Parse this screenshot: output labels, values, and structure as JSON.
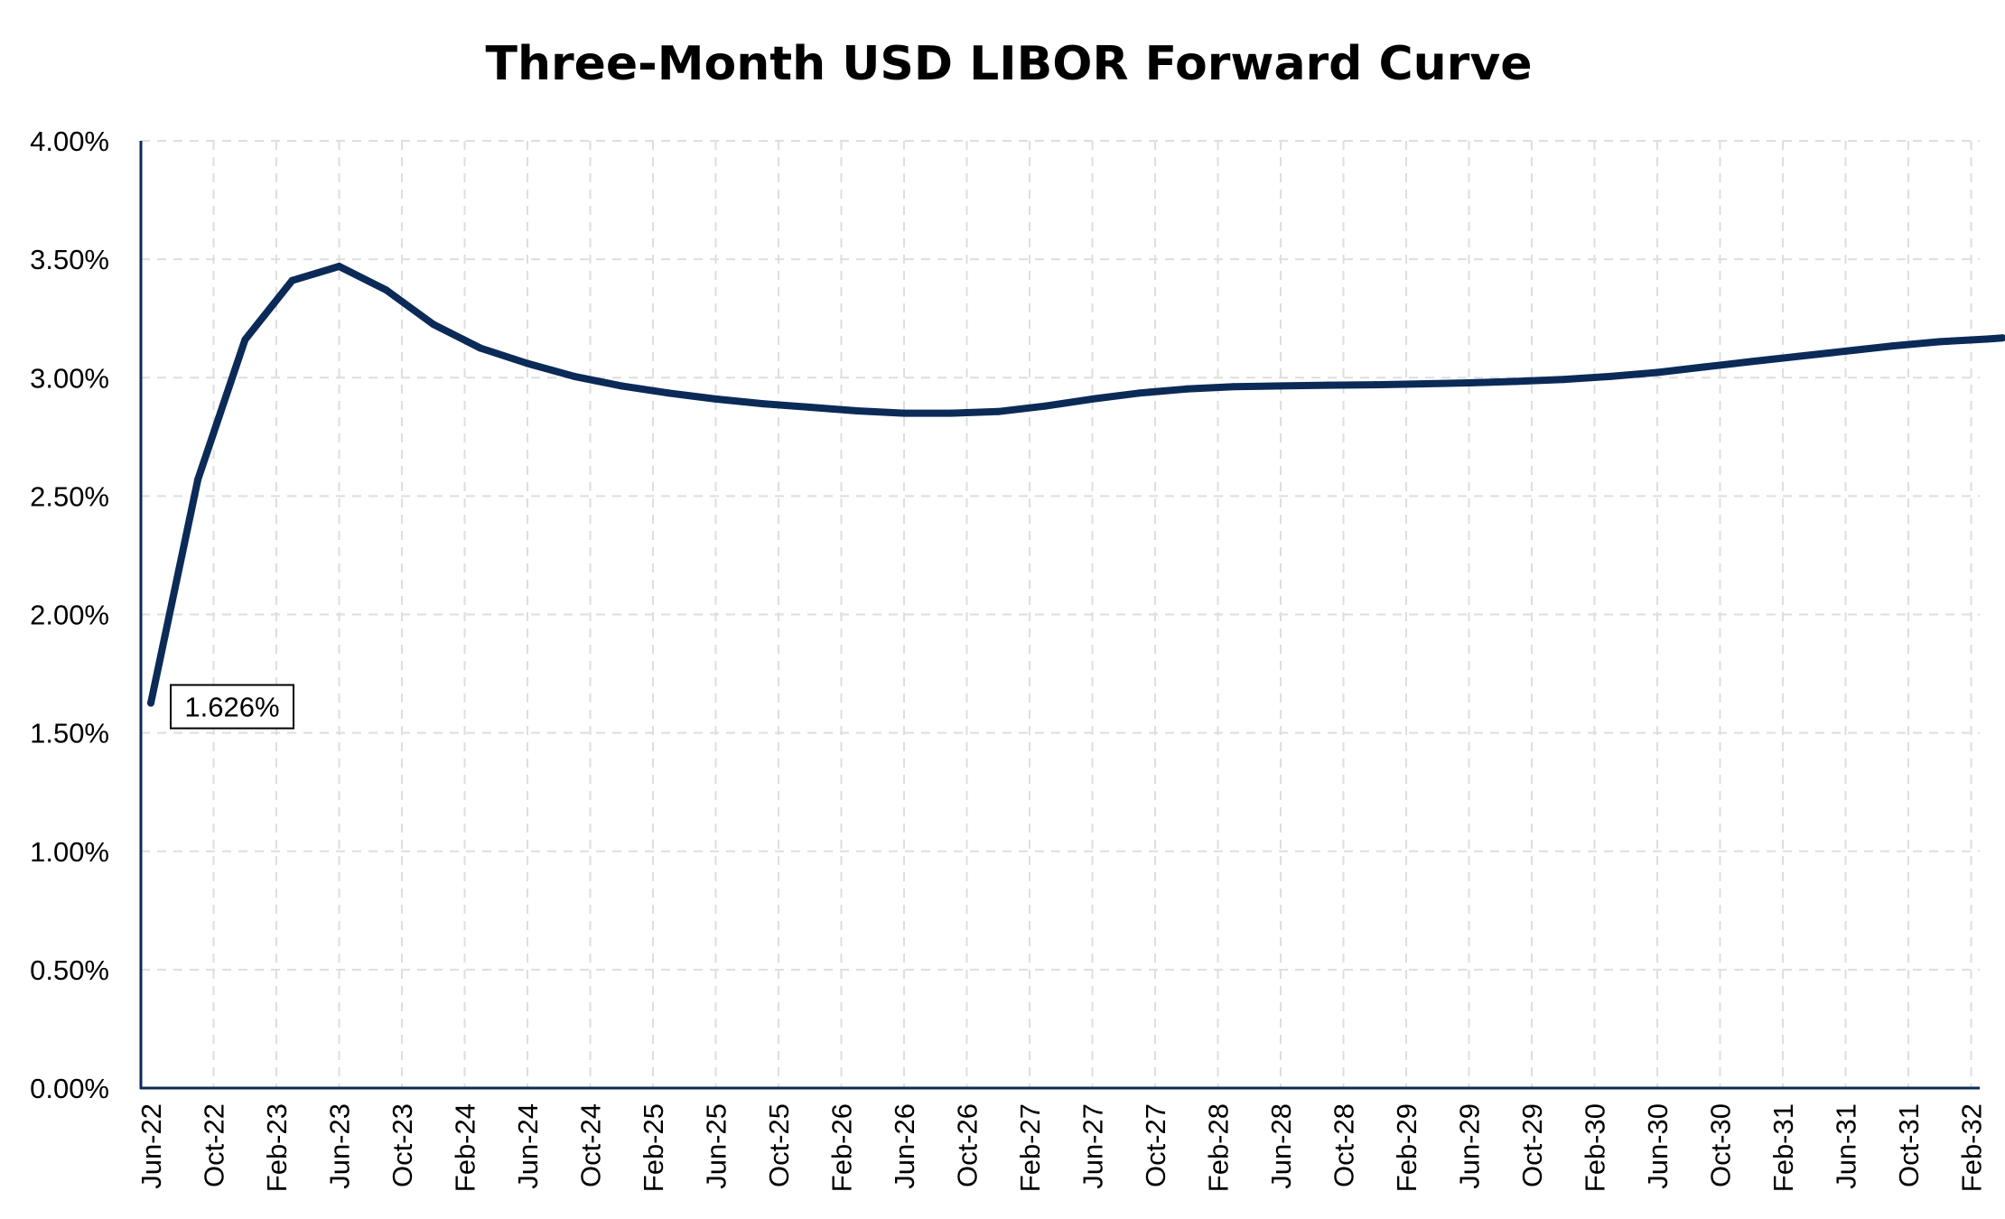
{
  "chart_data": {
    "type": "line",
    "title": "Three-Month USD LIBOR Forward Curve",
    "xlabel": "",
    "ylabel": "",
    "ylim": [
      0,
      4
    ],
    "y_unit": "%",
    "y_ticks": [
      "0.00%",
      "0.50%",
      "1.00%",
      "1.50%",
      "2.00%",
      "2.50%",
      "3.00%",
      "3.50%",
      "4.00%"
    ],
    "x_tick_labels": [
      "Jun-22",
      "Oct-22",
      "Feb-23",
      "Jun-23",
      "Oct-23",
      "Feb-24",
      "Jun-24",
      "Oct-24",
      "Feb-25",
      "Jun-25",
      "Oct-25",
      "Feb-26",
      "Jun-26",
      "Oct-26",
      "Feb-27",
      "Jun-27",
      "Oct-27",
      "Feb-28",
      "Jun-28",
      "Oct-28",
      "Feb-29",
      "Jun-29",
      "Oct-29",
      "Feb-30",
      "Jun-30",
      "Oct-30",
      "Feb-31",
      "Jun-31",
      "Oct-31",
      "Feb-32"
    ],
    "grid": true,
    "line_color": "#0b2a57",
    "series": [
      {
        "x": [
          "Jun-22",
          "Sep-22",
          "Dec-22",
          "Mar-23",
          "Jun-23",
          "Sep-23",
          "Dec-23",
          "Mar-24",
          "Jun-24",
          "Sep-24",
          "Dec-24",
          "Mar-25",
          "Jun-25",
          "Sep-25",
          "Dec-25",
          "Mar-26",
          "Jun-26",
          "Sep-26",
          "Dec-26",
          "Mar-27",
          "Jun-27",
          "Sep-27",
          "Dec-27",
          "Mar-28",
          "Jun-28",
          "Sep-28",
          "Dec-28",
          "Mar-29",
          "Jun-29",
          "Sep-29",
          "Dec-29",
          "Mar-30",
          "Jun-30",
          "Sep-30",
          "Dec-30",
          "Mar-31",
          "Jun-31",
          "Sep-31",
          "Dec-31",
          "Mar-32",
          "Apr-32"
        ],
        "values": [
          1.626,
          2.57,
          3.16,
          3.41,
          3.47,
          3.37,
          3.225,
          3.125,
          3.06,
          3.005,
          2.965,
          2.935,
          2.91,
          2.89,
          2.875,
          2.86,
          2.85,
          2.85,
          2.857,
          2.88,
          2.91,
          2.935,
          2.952,
          2.962,
          2.965,
          2.968,
          2.97,
          2.974,
          2.978,
          2.984,
          2.992,
          3.005,
          3.022,
          3.045,
          3.068,
          3.09,
          3.112,
          3.134,
          3.152,
          3.163,
          3.168
        ]
      }
    ],
    "annotations": [
      {
        "text": "1.626%",
        "x": "Jun-22",
        "y": 1.626
      }
    ]
  }
}
